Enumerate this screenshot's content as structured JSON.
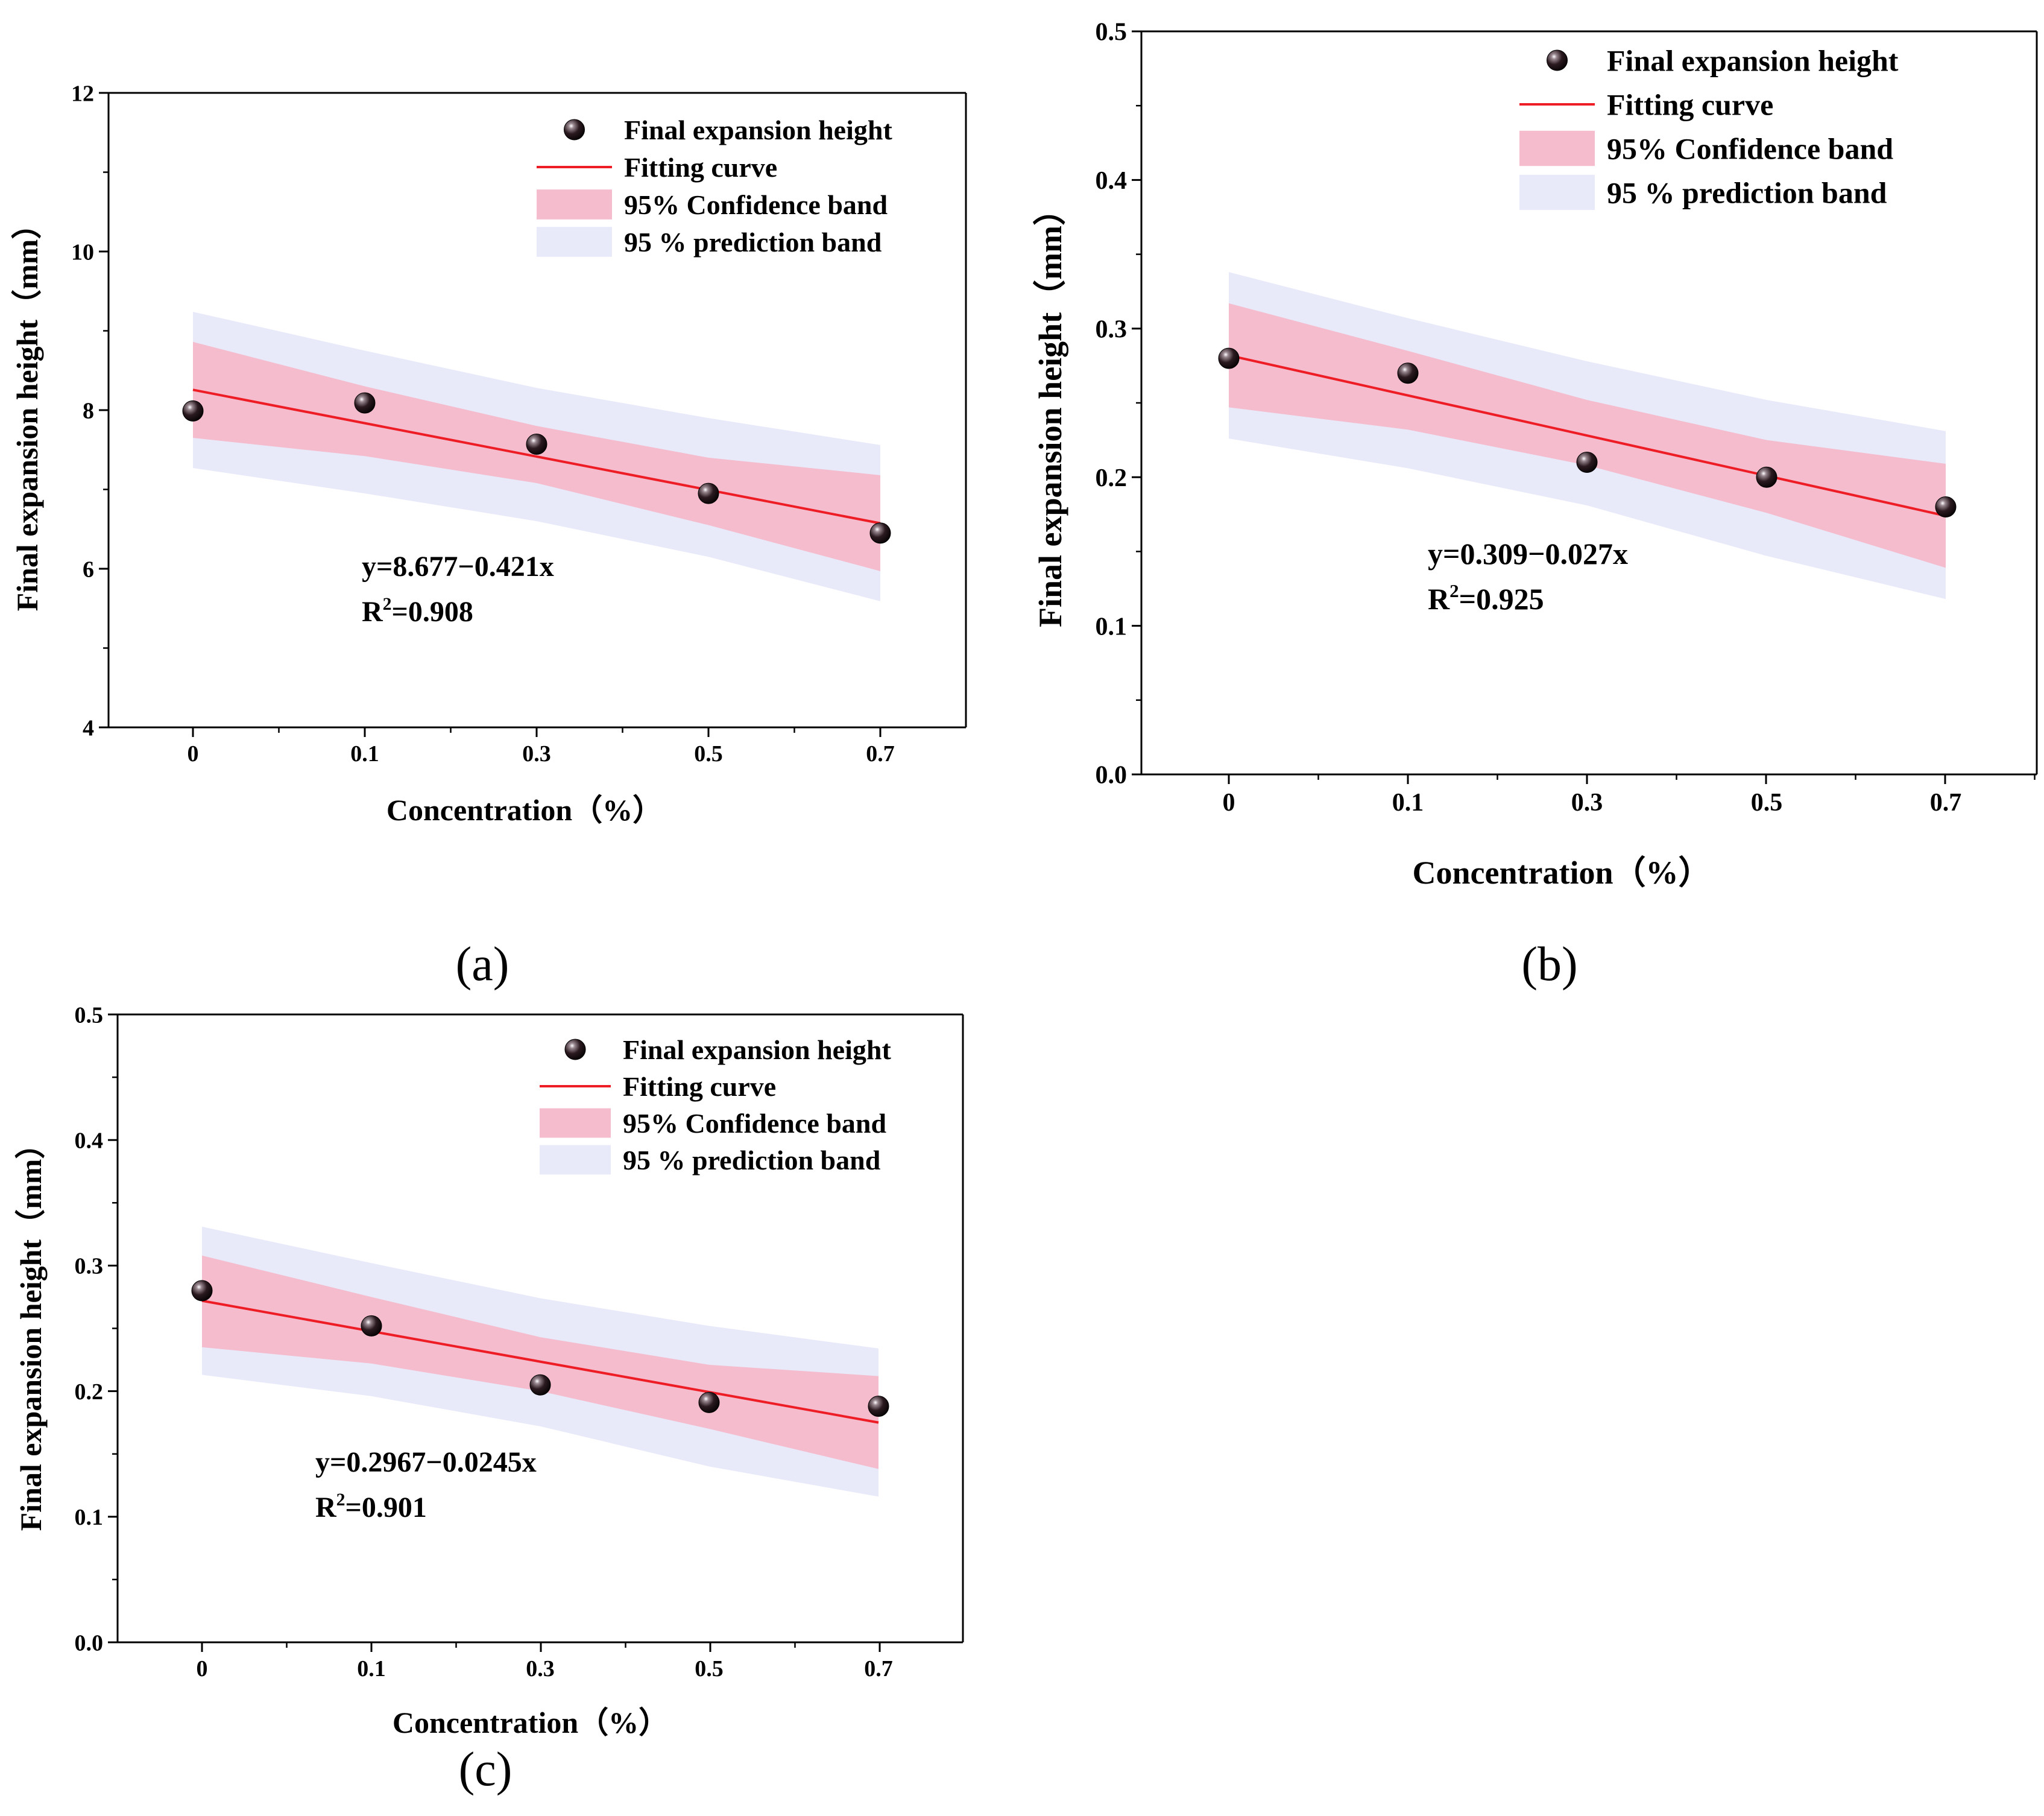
{
  "chart_data": [
    {
      "type": "scatter",
      "caption": "(a)",
      "xlabel": "Concentration（%）",
      "ylabel": "Final expansion height（mm）",
      "ylim": [
        4,
        12
      ],
      "yticks": [
        "4",
        "6",
        "8",
        "10",
        "12"
      ],
      "categories": [
        "0",
        "0.1",
        "0.3",
        "0.5",
        "0.7"
      ],
      "series": [
        {
          "name": "Final expansion height",
          "values": [
            7.99,
            8.09,
            7.57,
            6.95,
            6.45
          ]
        }
      ],
      "fit": {
        "name": "Fitting curve",
        "start": 8.256,
        "end": 6.573
      },
      "confidence": {
        "name": "95% Confidence band",
        "upper": [
          8.86,
          8.3,
          7.8,
          7.4,
          7.18
        ],
        "lower": [
          7.65,
          7.42,
          7.08,
          6.55,
          5.97
        ]
      },
      "prediction": {
        "name": "95 % prediction band",
        "upper": [
          9.24,
          8.75,
          8.28,
          7.9,
          7.56
        ],
        "lower": [
          7.27,
          6.95,
          6.6,
          6.15,
          5.59
        ]
      },
      "equation": "y=8.677−0.421x",
      "r2_prefix": "R",
      "r2_sup": "2",
      "r2_value": "=0.908"
    },
    {
      "type": "scatter",
      "caption": "(b)",
      "xlabel": "Concentration（%）",
      "ylabel": "Final expansion height（mm）",
      "ylim": [
        0,
        0.5
      ],
      "yticks": [
        "0.0",
        "0.1",
        "0.2",
        "0.3",
        "0.4",
        "0.5"
      ],
      "categories": [
        "0",
        "0.1",
        "0.3",
        "0.5",
        "0.7"
      ],
      "series": [
        {
          "name": "Final expansion height",
          "values": [
            0.28,
            0.27,
            0.21,
            0.2,
            0.18
          ]
        }
      ],
      "fit": {
        "name": "Fitting curve",
        "start": 0.282,
        "end": 0.174
      },
      "confidence": {
        "name": "95% Confidence band",
        "upper": [
          0.317,
          0.285,
          0.252,
          0.225,
          0.209
        ],
        "lower": [
          0.247,
          0.232,
          0.208,
          0.176,
          0.139
        ]
      },
      "prediction": {
        "name": "95 % prediction band",
        "upper": [
          0.338,
          0.307,
          0.278,
          0.252,
          0.231
        ],
        "lower": [
          0.226,
          0.206,
          0.181,
          0.147,
          0.118
        ]
      },
      "equation": "y=0.309−0.027x",
      "r2_prefix": "R",
      "r2_sup": "2",
      "r2_value": "=0.925"
    },
    {
      "type": "scatter",
      "caption": "(c)",
      "xlabel": "Concentration（%）",
      "ylabel": "Final expansion height（mm）",
      "ylim": [
        0,
        0.5
      ],
      "yticks": [
        "0.0",
        "0.1",
        "0.2",
        "0.3",
        "0.4",
        "0.5"
      ],
      "categories": [
        "0",
        "0.1",
        "0.3",
        "0.5",
        "0.7"
      ],
      "series": [
        {
          "name": "Final expansion height",
          "values": [
            0.28,
            0.252,
            0.205,
            0.191,
            0.188
          ]
        }
      ],
      "fit": {
        "name": "Fitting curve",
        "start": 0.272,
        "end": 0.175
      },
      "confidence": {
        "name": "95% Confidence band",
        "upper": [
          0.308,
          0.275,
          0.243,
          0.221,
          0.212
        ],
        "lower": [
          0.235,
          0.222,
          0.2,
          0.17,
          0.138
        ]
      },
      "prediction": {
        "name": "95 % prediction band",
        "upper": [
          0.331,
          0.302,
          0.274,
          0.252,
          0.234
        ],
        "lower": [
          0.213,
          0.196,
          0.172,
          0.14,
          0.116
        ]
      },
      "equation": "y=0.2967−0.0245x",
      "r2_prefix": "R",
      "r2_sup": "2",
      "r2_value": "=0.901"
    }
  ],
  "colors": {
    "fit": "#ee1c25",
    "confidence": "#f4bccd",
    "prediction": "#e8eafa",
    "marker": "#2b1a20",
    "axis": "#000000"
  }
}
